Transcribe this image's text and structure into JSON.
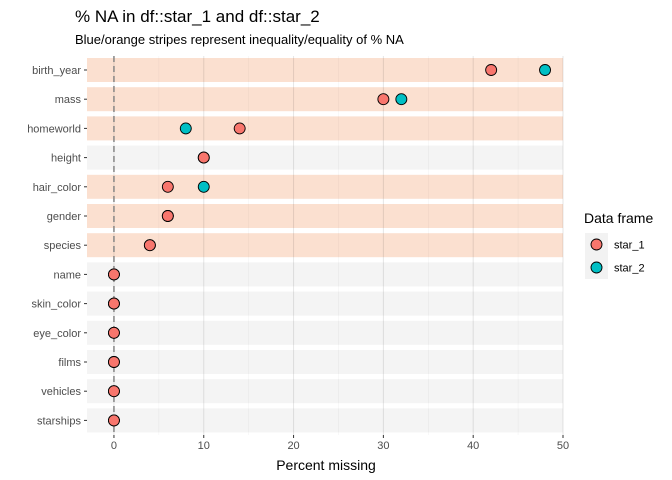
{
  "chart_data": {
    "type": "scatter",
    "title": "% NA in df::star_1 and df::star_2",
    "subtitle": "Blue/orange stripes represent inequality/equality of % NA",
    "xlabel": "Percent missing",
    "ylabel": "",
    "xlim": [
      -3,
      50
    ],
    "x_ticks": [
      0,
      10,
      20,
      30,
      40,
      50
    ],
    "reference_line_x": 0,
    "grid": true,
    "legend": {
      "title": "Data frame",
      "position": "right",
      "entries": [
        {
          "name": "star_1",
          "color": "#F8766D"
        },
        {
          "name": "star_2",
          "color": "#00BFC4"
        }
      ]
    },
    "stripe_colors": {
      "unequal": "#FBE0D0",
      "equal": "#F4F4F4"
    },
    "categories": [
      "birth_year",
      "mass",
      "homeworld",
      "height",
      "hair_color",
      "gender",
      "species",
      "name",
      "skin_color",
      "eye_color",
      "films",
      "vehicles",
      "starships"
    ],
    "stripe_unequal": [
      true,
      true,
      true,
      false,
      true,
      true,
      true,
      false,
      false,
      false,
      false,
      false,
      false
    ],
    "series": [
      {
        "name": "star_1",
        "color": "#F8766D",
        "values": [
          42,
          30,
          14,
          10,
          6,
          6,
          4,
          0,
          0,
          0,
          0,
          0,
          0
        ]
      },
      {
        "name": "star_2",
        "color": "#00BFC4",
        "values": [
          48,
          32,
          8,
          10,
          10,
          6,
          4,
          0,
          0,
          0,
          0,
          0,
          0
        ]
      }
    ]
  }
}
